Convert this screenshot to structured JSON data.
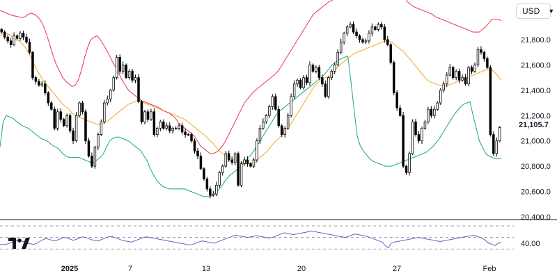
{
  "currency": {
    "label": "USD"
  },
  "last_price_label": "21,105.7",
  "colors": {
    "candle": "#000000",
    "upper_band": "#e8344a",
    "middle_band": "#f5a623",
    "lower_band": "#17a38a",
    "rsi_line": "#7e57c2",
    "rsi_guides": "#9598a1"
  },
  "chart_data": [
    {
      "type": "candlestick",
      "title": "",
      "price_axis": {
        "ticks": [
          "21,800.0",
          "21,600.0",
          "21,400.0",
          "21,200.0",
          "21,000.0",
          "20,800.0",
          "20,600.0",
          "20,400.0"
        ],
        "range": [
          20400,
          22050
        ]
      },
      "time_axis": {
        "labels": [
          "2025",
          "7",
          "13",
          "20",
          "27",
          "Feb"
        ]
      },
      "last_value": 21105.7,
      "series": [
        {
          "name": "",
          "type": "candles",
          "close": [
            21860,
            21820,
            21790,
            21760,
            21830,
            21810,
            21850,
            21820,
            21780,
            21700,
            21500,
            21470,
            21440,
            21450,
            21380,
            21300,
            21250,
            21100,
            21230,
            21170,
            21120,
            21200,
            21080,
            21000,
            21200,
            21300,
            21230,
            21000,
            20880,
            20800,
            20950,
            21050,
            21150,
            21300,
            21330,
            21400,
            21500,
            21660,
            21550,
            21600,
            21500,
            21550,
            21480,
            21500,
            21310,
            21150,
            21230,
            21170,
            21230,
            21050,
            21100,
            21150,
            21100,
            21120,
            21080,
            21100,
            21100,
            21120,
            21070,
            21050,
            21050,
            21000,
            20920,
            20880,
            20780,
            20700,
            20620,
            20570,
            20580,
            20650,
            20750,
            20800,
            20900,
            20850,
            20830,
            20900,
            20650,
            20820,
            20850,
            20820,
            20800,
            20850,
            21000,
            21100,
            21150,
            21200,
            21270,
            21350,
            21250,
            21120,
            21050,
            21100,
            21200,
            21350,
            21450,
            21480,
            21420,
            21500,
            21460,
            21600,
            21550,
            21580,
            21500,
            21450,
            21350,
            21500,
            21550,
            21600,
            21700,
            21780,
            21850,
            21900,
            21920,
            21860,
            21830,
            21800,
            21780,
            21790,
            21850,
            21900,
            21880,
            21920,
            21900,
            21800,
            21760,
            21620,
            21380,
            21260,
            21200,
            20800,
            20750,
            20900,
            21150,
            21050,
            21000,
            21100,
            21150,
            21250,
            21200,
            21250,
            21300,
            21400,
            21450,
            21520,
            21580,
            21500,
            21550,
            21480,
            21500,
            21450,
            21580,
            21550,
            21600,
            21720,
            21700,
            21650,
            21580,
            21050,
            20900,
            21000,
            21105.7
          ]
        },
        {
          "name": "",
          "type": "line",
          "values": [
            21830,
            21850,
            21850,
            21840,
            21820,
            21800,
            21790,
            21770,
            21740,
            21700,
            21650,
            21600,
            21550,
            21510,
            21470,
            21440,
            21410,
            21380,
            21350,
            21320,
            21290,
            21270,
            21250,
            21220,
            21200,
            21190,
            21180,
            21170,
            21160,
            21150,
            21140,
            21130,
            21130,
            21140,
            21150,
            21170,
            21190,
            21210,
            21230,
            21250,
            21270,
            21290,
            21300,
            21310,
            21320,
            21310,
            21300,
            21290,
            21280,
            21270,
            21260,
            21250,
            21240,
            21230,
            21220,
            21210,
            21200,
            21190,
            21180,
            21170,
            21150,
            21130,
            21110,
            21090,
            21070,
            21050,
            21030,
            21000,
            20980,
            20950,
            20920,
            20900,
            20880,
            20870,
            20860,
            20850,
            20840,
            20830,
            20820,
            20820,
            20820,
            20830,
            20850,
            20870,
            20890,
            20910,
            20940,
            20970,
            21000,
            21020,
            21050,
            21080,
            21110,
            21140,
            21180,
            21220,
            21260,
            21300,
            21340,
            21380,
            21420,
            21450,
            21470,
            21490,
            21500,
            21510,
            21530,
            21560,
            21590,
            21610,
            21630,
            21650,
            21670,
            21690,
            21700,
            21710,
            21720,
            21730,
            21740,
            21750,
            21760,
            21770,
            21780,
            21790,
            21790,
            21780,
            21760,
            21740,
            21720,
            21700,
            21670,
            21640,
            21610,
            21580,
            21550,
            21520,
            21490,
            21470,
            21460,
            21450,
            21440,
            21440,
            21440,
            21440,
            21450,
            21460,
            21470,
            21480,
            21490,
            21500,
            21510,
            21520,
            21530,
            21540,
            21550,
            21560,
            21570,
            21560,
            21540,
            21510,
            21480
          ]
        },
        {
          "name": "",
          "type": "line",
          "values": [
            22030,
            22020,
            22010,
            22000,
            21990,
            21985,
            21980,
            21975,
            21980,
            22000,
            22010,
            22000,
            21980,
            21950,
            21900,
            21830,
            21750,
            21670,
            21600,
            21550,
            21500,
            21470,
            21450,
            21430,
            21440,
            21480,
            21560,
            21660,
            21740,
            21800,
            21820,
            21830,
            21800,
            21760,
            21720,
            21670,
            21620,
            21580,
            21530,
            21480,
            21440,
            21400,
            21380,
            21360,
            21340,
            21320,
            21310,
            21300,
            21290,
            21280,
            21270,
            21260,
            21240,
            21230,
            21220,
            21200,
            21180,
            21140,
            21120,
            21100,
            21080,
            21060,
            21040,
            21000,
            20960,
            20940,
            20920,
            20900,
            20900,
            20910,
            20930,
            20960,
            21000,
            21050,
            21100,
            21150,
            21200,
            21250,
            21300,
            21330,
            21360,
            21390,
            21410,
            21430,
            21450,
            21470,
            21490,
            21510,
            21530,
            21560,
            21600,
            21640,
            21680,
            21720,
            21760,
            21800,
            21840,
            21880,
            21920,
            21960,
            22000,
            22020,
            22040,
            22060,
            22080,
            22100,
            22110,
            22130,
            22150,
            22170,
            22190,
            22200,
            22200,
            22200,
            22200,
            22210,
            22230,
            22250,
            22270,
            22290,
            22320,
            22400,
            22450,
            22500,
            22550,
            22500,
            22400,
            22300,
            22200,
            22150,
            22100,
            22080,
            22060,
            22050,
            22040,
            22030,
            22020,
            22010,
            22000,
            21980,
            21970,
            21960,
            21950,
            21940,
            21930,
            21920,
            21910,
            21900,
            21890,
            21880,
            21870,
            21860,
            21860,
            21860,
            21880,
            21900,
            21930,
            21960,
            21960,
            21960,
            21950
          ]
        },
        {
          "name": "",
          "type": "line",
          "values": [
            20950,
            21150,
            21200,
            21190,
            21180,
            21160,
            21140,
            21120,
            21110,
            21100,
            21080,
            21060,
            21040,
            21020,
            21010,
            21000,
            20980,
            20960,
            20950,
            20930,
            20900,
            20880,
            20870,
            20870,
            20870,
            20870,
            20860,
            20850,
            20840,
            20830,
            20830,
            20850,
            20870,
            20900,
            20950,
            21000,
            21020,
            21030,
            21030,
            21020,
            21010,
            21000,
            20980,
            20960,
            20940,
            20920,
            20880,
            20840,
            20780,
            20730,
            20690,
            20660,
            20640,
            20630,
            20620,
            20620,
            20620,
            20620,
            20620,
            20620,
            20610,
            20600,
            20590,
            20580,
            20570,
            20560,
            20560,
            20560,
            20570,
            20590,
            20620,
            20650,
            20690,
            20720,
            20740,
            20760,
            20780,
            20800,
            20830,
            20860,
            20890,
            20920,
            20960,
            21000,
            21040,
            21080,
            21120,
            21160,
            21200,
            21230,
            21250,
            21270,
            21290,
            21310,
            21330,
            21350,
            21370,
            21390,
            21410,
            21430,
            21450,
            21470,
            21490,
            21510,
            21540,
            21570,
            21600,
            21620,
            21640,
            21650,
            21660,
            21670,
            21470,
            21250,
            21040,
            20960,
            20920,
            20890,
            20860,
            20840,
            20830,
            20820,
            20810,
            20800,
            20800,
            20800,
            20810,
            20820,
            20830,
            20840,
            20850,
            20860,
            20870,
            20880,
            20890,
            20900,
            20910,
            20930,
            20950,
            20980,
            21010,
            21050,
            21090,
            21130,
            21170,
            21210,
            21240,
            21270,
            21290,
            21300,
            21310,
            21200,
            21100,
            21000,
            20950,
            20900,
            20880,
            20870,
            20860,
            20860,
            20860
          ]
        }
      ]
    },
    {
      "type": "line",
      "title": "",
      "y_ticks": [
        "40.00"
      ],
      "series": [
        {
          "name": "",
          "values": [
            38,
            38,
            38,
            40,
            42,
            44,
            45,
            44,
            42,
            40,
            39,
            38,
            40,
            43,
            46,
            48,
            47,
            45,
            44,
            46,
            48,
            50,
            49,
            47,
            45,
            47,
            49,
            51,
            50,
            48,
            46,
            45,
            44,
            46,
            48,
            50,
            52,
            51,
            49,
            47,
            45,
            44,
            43,
            42,
            44,
            46,
            48,
            50,
            51,
            50,
            49,
            48,
            47,
            46,
            45,
            44,
            43,
            42,
            41,
            40,
            39,
            38,
            37,
            38,
            40,
            42,
            44,
            43,
            42,
            41,
            40,
            42,
            44,
            46,
            48,
            50,
            52,
            54,
            53,
            52,
            51,
            50,
            51,
            52,
            53,
            52,
            51,
            50,
            49,
            50,
            52,
            54,
            56,
            58,
            57,
            56,
            55,
            56,
            57,
            58,
            59,
            60,
            61,
            60,
            59,
            58,
            57,
            56,
            55,
            54,
            53,
            52,
            51,
            50,
            52,
            54,
            56,
            55,
            54,
            53,
            52,
            50,
            48,
            46,
            44,
            42,
            36,
            32,
            40,
            42,
            43,
            44,
            45,
            46,
            47,
            48,
            49,
            50,
            49,
            48,
            47,
            46,
            45,
            44,
            43,
            44,
            45,
            46,
            47,
            48,
            49,
            50,
            51,
            52,
            53,
            54,
            52,
            50,
            48,
            44,
            40,
            38,
            36,
            40,
            42
          ]
        }
      ]
    }
  ]
}
